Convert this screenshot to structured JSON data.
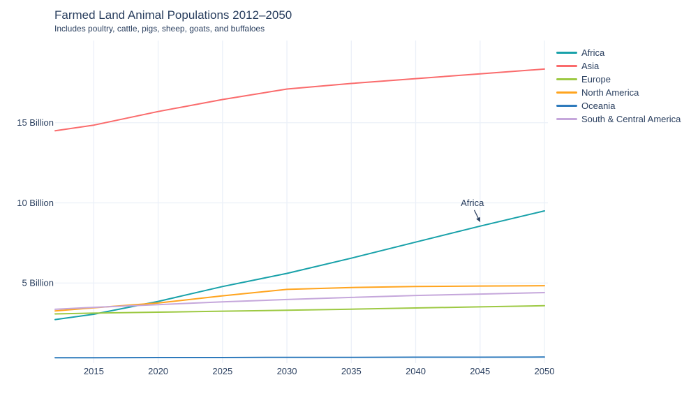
{
  "page": {
    "background": "#ffffff",
    "text_color": "#2a3f5f"
  },
  "header": {
    "title": "Farmed Land Animal Populations 2012–2050",
    "subtitle": "Includes poultry, cattle, pigs, sheep, goats, and buffaloes"
  },
  "chart_data": {
    "type": "line",
    "title": "Farmed Land Animal Populations 2012–2050",
    "subtitle": "Includes poultry, cattle, pigs, sheep, goats, and buffaloes",
    "xlabel": "",
    "ylabel": "",
    "x": [
      2012,
      2015,
      2020,
      2025,
      2030,
      2035,
      2040,
      2045,
      2050
    ],
    "series": [
      {
        "name": "Africa",
        "color": "#18a1a9",
        "values": [
          2.72,
          3.05,
          3.85,
          4.78,
          5.6,
          6.55,
          7.55,
          8.55,
          9.5
        ]
      },
      {
        "name": "Asia",
        "color": "#fa6b6c",
        "values": [
          14.5,
          14.85,
          15.7,
          16.45,
          17.1,
          17.45,
          17.75,
          18.05,
          18.35
        ]
      },
      {
        "name": "Europe",
        "color": "#9dc943",
        "values": [
          3.07,
          3.12,
          3.18,
          3.24,
          3.3,
          3.37,
          3.44,
          3.51,
          3.58
        ]
      },
      {
        "name": "North America",
        "color": "#ffa41e",
        "values": [
          3.26,
          3.45,
          3.75,
          4.2,
          4.6,
          4.72,
          4.78,
          4.81,
          4.83
        ]
      },
      {
        "name": "Oceania",
        "color": "#2e7abc",
        "values": [
          0.34,
          0.34,
          0.35,
          0.35,
          0.36,
          0.36,
          0.37,
          0.37,
          0.38
        ]
      },
      {
        "name": "South & Central America",
        "color": "#c5a7db",
        "values": [
          3.36,
          3.48,
          3.65,
          3.82,
          3.97,
          4.1,
          4.22,
          4.31,
          4.4
        ]
      }
    ],
    "x_ticks": [
      2015,
      2020,
      2025,
      2030,
      2035,
      2040,
      2045,
      2050
    ],
    "y_ticks": [
      {
        "value": 5,
        "label": "5 Billion"
      },
      {
        "value": 10,
        "label": "10 Billion"
      },
      {
        "value": 15,
        "label": "15 Billion"
      }
    ],
    "x_range": [
      2012,
      2050
    ],
    "y_range": [
      0,
      20.13
    ],
    "grid": true,
    "grid_color": "#ebf0f8",
    "legend_position": "top-right",
    "line_width": 2,
    "annotation": {
      "text": "Africa",
      "text_year": 2044.4,
      "text_value": 9.98,
      "arrow": {
        "from_year": 2044.55,
        "from_value": 9.55,
        "to_year": 2045.0,
        "to_value": 8.82
      }
    }
  }
}
